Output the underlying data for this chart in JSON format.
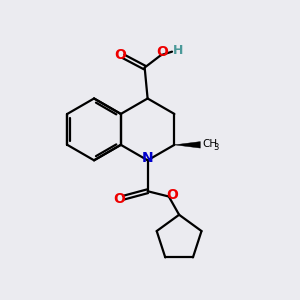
{
  "background_color": "#ebebf0",
  "atom_colors": {
    "C": "#000000",
    "N": "#0000cc",
    "O": "#ee0000",
    "H": "#4a9999"
  },
  "bond_color": "#000000",
  "bond_width": 1.6,
  "figsize": [
    3.0,
    3.0
  ],
  "dpi": 100,
  "xlim": [
    0,
    10
  ],
  "ylim": [
    0,
    10
  ]
}
